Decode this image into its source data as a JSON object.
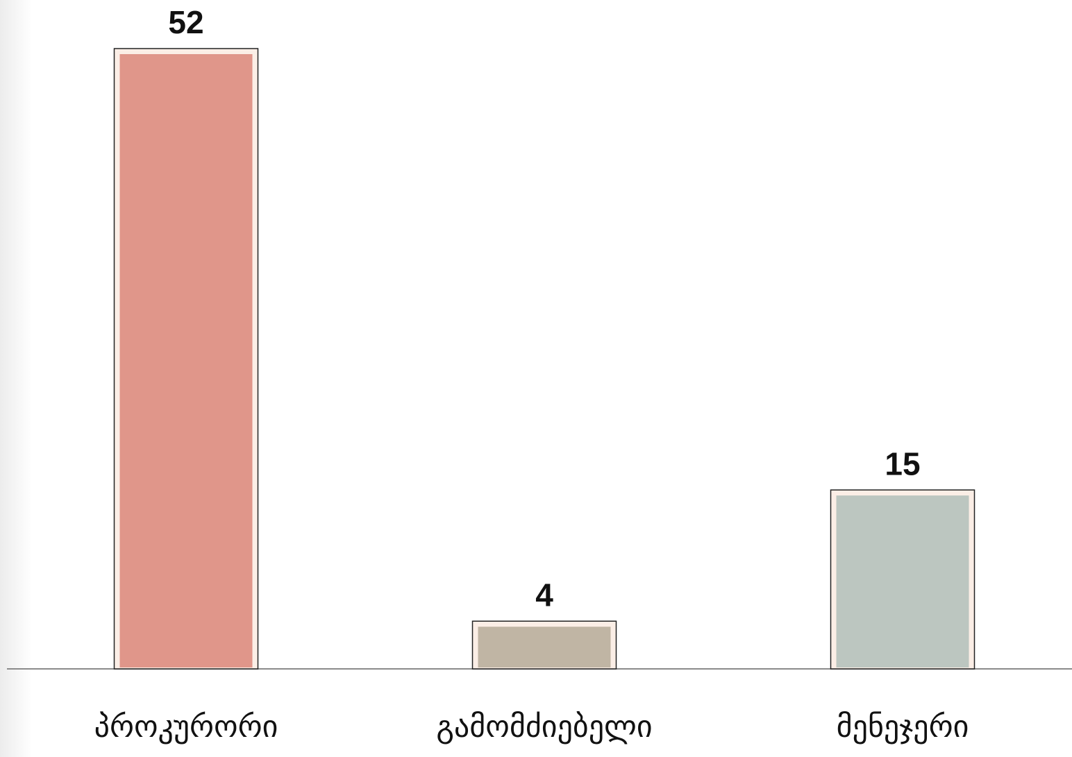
{
  "chart_data": {
    "type": "bar",
    "categories": [
      "პროკურორი",
      "გამომძიებელი",
      "მენეჯერი"
    ],
    "values": [
      52,
      4,
      15
    ],
    "colors": [
      "#e0968a",
      "#c0b5a4",
      "#bcc6c0"
    ],
    "grid": false
  }
}
